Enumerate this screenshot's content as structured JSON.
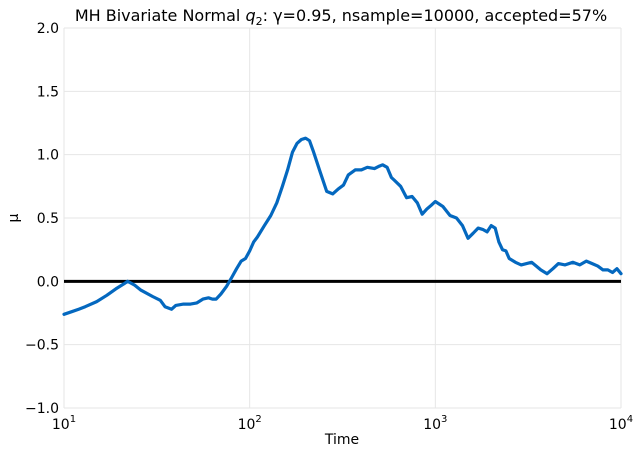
{
  "chart_data": {
    "type": "line",
    "title_prefix": "MH Bivariate Normal ",
    "title_symbol": "q",
    "title_subscript": "2",
    "title_suffix": ": γ=0.95, nsample=10000, accepted=57%",
    "xlabel": "Time",
    "ylabel": "μ",
    "xscale": "log",
    "xlim": [
      10,
      10000
    ],
    "ylim": [
      -1.0,
      2.0
    ],
    "grid": true,
    "legend": "none",
    "colors": {
      "series": "#0468BF",
      "reference_line": "#000000",
      "grid": "#E6E6E6"
    },
    "x_ticks": [
      {
        "value": 10,
        "base": "10",
        "exp": "1"
      },
      {
        "value": 100,
        "base": "10",
        "exp": "2"
      },
      {
        "value": 1000,
        "base": "10",
        "exp": "3"
      },
      {
        "value": 10000,
        "base": "10",
        "exp": "4"
      }
    ],
    "y_ticks": [
      {
        "value": -1.0,
        "label": "−1.0"
      },
      {
        "value": -0.5,
        "label": "−0.5"
      },
      {
        "value": 0.0,
        "label": "0.0"
      },
      {
        "value": 0.5,
        "label": "0.5"
      },
      {
        "value": 1.0,
        "label": "1.0"
      },
      {
        "value": 1.5,
        "label": "1.5"
      },
      {
        "value": 2.0,
        "label": "2.0"
      }
    ],
    "reference_line": {
      "y": 0.0
    },
    "series": [
      {
        "x": [
          10,
          11,
          12,
          13,
          15,
          17,
          19,
          21,
          22,
          24,
          26,
          30,
          33,
          35,
          38,
          40,
          44,
          48,
          52,
          56,
          60,
          63,
          66,
          70,
          75,
          80,
          85,
          90,
          95,
          100,
          105,
          110,
          120,
          130,
          140,
          150,
          160,
          170,
          180,
          190,
          200,
          210,
          220,
          240,
          260,
          280,
          300,
          320,
          340,
          370,
          400,
          430,
          470,
          500,
          520,
          550,
          580,
          600,
          650,
          700,
          750,
          800,
          850,
          900,
          950,
          1000,
          1050,
          1100,
          1200,
          1300,
          1400,
          1500,
          1600,
          1700,
          1800,
          1900,
          2000,
          2100,
          2200,
          2300,
          2400,
          2500,
          2700,
          2900,
          3100,
          3300,
          3500,
          3700,
          4000,
          4300,
          4600,
          5000,
          5500,
          6000,
          6500,
          7000,
          7500,
          8000,
          8500,
          9000,
          9500,
          10000
        ],
        "y": [
          -0.26,
          -0.24,
          -0.22,
          -0.2,
          -0.16,
          -0.11,
          -0.06,
          -0.02,
          0.0,
          -0.03,
          -0.07,
          -0.12,
          -0.15,
          -0.2,
          -0.22,
          -0.19,
          -0.18,
          -0.18,
          -0.17,
          -0.14,
          -0.13,
          -0.14,
          -0.14,
          -0.1,
          -0.04,
          0.03,
          0.1,
          0.16,
          0.18,
          0.24,
          0.31,
          0.35,
          0.44,
          0.52,
          0.62,
          0.75,
          0.88,
          1.02,
          1.09,
          1.12,
          1.13,
          1.11,
          1.03,
          0.86,
          0.71,
          0.69,
          0.73,
          0.76,
          0.84,
          0.88,
          0.88,
          0.9,
          0.89,
          0.91,
          0.92,
          0.9,
          0.82,
          0.8,
          0.75,
          0.66,
          0.67,
          0.62,
          0.53,
          0.57,
          0.6,
          0.63,
          0.61,
          0.59,
          0.52,
          0.5,
          0.44,
          0.34,
          0.38,
          0.42,
          0.41,
          0.39,
          0.44,
          0.42,
          0.31,
          0.25,
          0.24,
          0.18,
          0.15,
          0.13,
          0.14,
          0.15,
          0.12,
          0.09,
          0.06,
          0.1,
          0.14,
          0.13,
          0.15,
          0.13,
          0.16,
          0.14,
          0.12,
          0.09,
          0.09,
          0.07,
          0.1,
          0.06
        ]
      }
    ]
  }
}
